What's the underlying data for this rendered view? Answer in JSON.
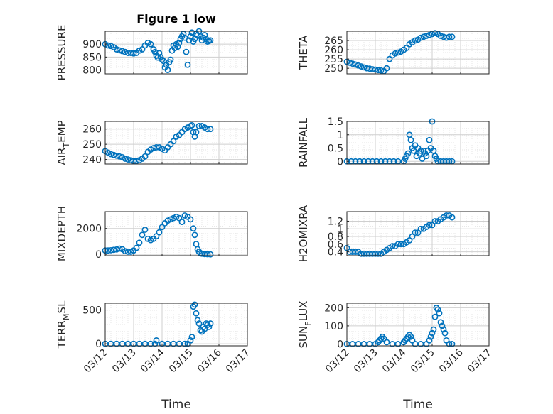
{
  "figure": {
    "title": "Figure 1 low"
  },
  "colors": {
    "marker": "#0072BD",
    "axis": "#262626",
    "grid": "#d9d9d9",
    "background": "#ffffff"
  },
  "chart_data": [
    {
      "id": "pressure",
      "type": "scatter",
      "ylabel": "PRESSURE",
      "ylabel_main": "PRESSURE",
      "ylabel_sub": "",
      "ylabel_tail": "",
      "title": "Figure 1 low",
      "xlim": [
        0,
        5
      ],
      "ylim": [
        785,
        950
      ],
      "yticks": [
        800,
        850,
        900
      ],
      "xticks": [],
      "grid": true,
      "marker": "open-circle",
      "x": [
        0.0,
        0.1,
        0.2,
        0.3,
        0.4,
        0.5,
        0.6,
        0.7,
        0.8,
        0.9,
        1.0,
        1.1,
        1.2,
        1.3,
        1.4,
        1.5,
        1.6,
        1.7,
        1.75,
        1.8,
        1.85,
        1.9,
        1.95,
        2.0,
        2.05,
        2.1,
        2.15,
        2.2,
        2.25,
        2.3,
        2.35,
        2.4,
        2.45,
        2.5,
        2.55,
        2.6,
        2.65,
        2.7,
        2.75,
        2.8,
        2.85,
        2.9,
        2.95,
        3.0,
        3.05,
        3.1,
        3.15,
        3.2,
        3.25,
        3.3,
        3.35,
        3.4,
        3.45,
        3.5,
        3.55,
        3.6,
        3.65,
        3.7
      ],
      "y": [
        900,
        895,
        893,
        888,
        880,
        876,
        873,
        870,
        866,
        866,
        864,
        866,
        875,
        880,
        895,
        905,
        900,
        880,
        870,
        855,
        848,
        865,
        850,
        840,
        835,
        810,
        820,
        800,
        830,
        840,
        875,
        895,
        885,
        900,
        890,
        905,
        920,
        930,
        940,
        925,
        870,
        820,
        915,
        930,
        945,
        910,
        920,
        940,
        935,
        950,
        930,
        915,
        925,
        935,
        920,
        910,
        912,
        915
      ]
    },
    {
      "id": "theta",
      "type": "scatter",
      "ylabel": "THETA",
      "ylabel_main": "THETA",
      "ylabel_sub": "",
      "ylabel_tail": "",
      "xlim": [
        0,
        5
      ],
      "ylim": [
        247,
        270
      ],
      "yticks": [
        250,
        255,
        260,
        265
      ],
      "xticks": [],
      "grid": true,
      "marker": "open-circle",
      "x": [
        0.0,
        0.1,
        0.2,
        0.3,
        0.4,
        0.5,
        0.6,
        0.7,
        0.8,
        0.9,
        1.0,
        1.1,
        1.2,
        1.3,
        1.4,
        1.5,
        1.6,
        1.7,
        1.8,
        1.9,
        2.0,
        2.1,
        2.2,
        2.3,
        2.4,
        2.5,
        2.6,
        2.7,
        2.8,
        2.9,
        3.0,
        3.1,
        3.2,
        3.3,
        3.4,
        3.5,
        3.6,
        3.7
      ],
      "y": [
        253.5,
        253,
        252.5,
        252,
        251.5,
        251,
        250.5,
        250,
        249.8,
        249.5,
        249.3,
        249,
        248.8,
        248.5,
        250,
        255,
        257,
        258,
        258.5,
        259,
        260,
        261,
        263,
        264,
        265,
        265.5,
        266.5,
        267,
        267.5,
        268,
        268.5,
        269,
        268.5,
        267.5,
        267,
        266.5,
        267,
        267
      ]
    },
    {
      "id": "air_temp",
      "type": "scatter",
      "ylabel": "AIR_TEMP",
      "ylabel_main": "AIR",
      "ylabel_sub": "T",
      "ylabel_tail": "EMP",
      "xlim": [
        0,
        5
      ],
      "ylim": [
        237,
        265
      ],
      "yticks": [
        240,
        250,
        260
      ],
      "xticks": [],
      "grid": true,
      "marker": "open-circle",
      "x": [
        0.0,
        0.1,
        0.2,
        0.3,
        0.4,
        0.5,
        0.6,
        0.7,
        0.8,
        0.9,
        1.0,
        1.1,
        1.2,
        1.3,
        1.4,
        1.5,
        1.6,
        1.7,
        1.8,
        1.9,
        2.0,
        2.1,
        2.2,
        2.3,
        2.4,
        2.5,
        2.6,
        2.7,
        2.8,
        2.9,
        3.0,
        3.05,
        3.1,
        3.15,
        3.2,
        3.3,
        3.4,
        3.5,
        3.6,
        3.7
      ],
      "y": [
        245.5,
        244.5,
        243.5,
        243,
        242.5,
        242,
        241.5,
        240.5,
        240,
        239.5,
        239,
        239,
        239.5,
        240.5,
        242,
        245,
        246.5,
        247.5,
        248,
        248,
        247,
        246,
        248,
        250,
        252,
        255,
        256,
        258,
        260,
        261,
        262,
        262.5,
        258,
        255,
        258,
        262,
        262,
        261,
        260,
        260
      ]
    },
    {
      "id": "rainfall",
      "type": "scatter",
      "ylabel": "RAINFALL",
      "ylabel_main": "RAINFALL",
      "ylabel_sub": "",
      "ylabel_tail": "",
      "xlim": [
        0,
        5
      ],
      "ylim": [
        -0.1,
        1.5
      ],
      "yticks": [
        0,
        0.5,
        1,
        1.5
      ],
      "yticklabels": [
        "0",
        "0.5",
        "1",
        "1.5"
      ],
      "xticks": [],
      "grid": true,
      "marker": "open-circle",
      "x": [
        0.0,
        0.15,
        0.3,
        0.45,
        0.6,
        0.75,
        0.9,
        1.05,
        1.2,
        1.35,
        1.5,
        1.65,
        1.8,
        2.0,
        2.05,
        2.1,
        2.15,
        2.2,
        2.25,
        2.3,
        2.35,
        2.4,
        2.45,
        2.5,
        2.55,
        2.6,
        2.65,
        2.7,
        2.75,
        2.8,
        2.85,
        2.9,
        2.95,
        3.0,
        3.05,
        3.1,
        3.15,
        3.2,
        3.3,
        3.4,
        3.5,
        3.6,
        3.7
      ],
      "y": [
        0,
        0,
        0,
        0,
        0,
        0,
        0,
        0,
        0,
        0,
        0,
        0,
        0,
        0,
        0.1,
        0.2,
        0.3,
        1.0,
        0.8,
        0.5,
        0.4,
        0.6,
        0.2,
        0.5,
        0.3,
        0.4,
        0.1,
        0.4,
        0.3,
        0.2,
        0.4,
        0.8,
        0.5,
        1.5,
        0.4,
        0.2,
        0.1,
        0,
        0,
        0,
        0,
        0,
        0
      ]
    },
    {
      "id": "mixdepth",
      "type": "scatter",
      "ylabel": "MIXDEPTH",
      "ylabel_main": "MIXDEPTH",
      "ylabel_sub": "",
      "ylabel_tail": "",
      "xlim": [
        0,
        5
      ],
      "ylim": [
        -100,
        3300
      ],
      "yticks": [
        0,
        2000
      ],
      "xticks": [],
      "grid": true,
      "marker": "open-circle",
      "x": [
        0.0,
        0.1,
        0.2,
        0.3,
        0.4,
        0.5,
        0.6,
        0.7,
        0.8,
        0.9,
        1.0,
        1.1,
        1.2,
        1.3,
        1.4,
        1.5,
        1.6,
        1.7,
        1.8,
        1.9,
        2.0,
        2.1,
        2.2,
        2.3,
        2.4,
        2.5,
        2.6,
        2.7,
        2.8,
        2.9,
        3.0,
        3.1,
        3.15,
        3.2,
        3.25,
        3.3,
        3.35,
        3.4,
        3.5,
        3.6,
        3.7
      ],
      "y": [
        300,
        300,
        320,
        350,
        380,
        450,
        400,
        250,
        200,
        200,
        300,
        500,
        900,
        1500,
        1900,
        1200,
        1100,
        1200,
        1400,
        1700,
        2100,
        2400,
        2600,
        2700,
        2800,
        2900,
        2800,
        2500,
        3000,
        2900,
        2700,
        2000,
        1500,
        800,
        400,
        200,
        100,
        50,
        20,
        10,
        0
      ]
    },
    {
      "id": "h2omixra",
      "type": "scatter",
      "ylabel": "H2OMIXRA",
      "ylabel_main": "H2OMIXRA",
      "ylabel_sub": "",
      "ylabel_tail": "",
      "xlim": [
        0,
        5
      ],
      "ylim": [
        0.3,
        1.45
      ],
      "yticks": [
        0.4,
        0.6,
        0.8,
        1,
        1.2
      ],
      "yticklabels": [
        "0.4",
        "0.6",
        "0.8",
        "1",
        "1.2"
      ],
      "xticks": [],
      "grid": true,
      "marker": "open-circle",
      "x": [
        0.0,
        0.1,
        0.2,
        0.3,
        0.4,
        0.5,
        0.6,
        0.7,
        0.8,
        0.9,
        1.0,
        1.1,
        1.2,
        1.3,
        1.4,
        1.5,
        1.6,
        1.7,
        1.8,
        1.9,
        2.0,
        2.1,
        2.2,
        2.3,
        2.4,
        2.5,
        2.6,
        2.7,
        2.8,
        2.9,
        3.0,
        3.1,
        3.2,
        3.3,
        3.4,
        3.5,
        3.6,
        3.7
      ],
      "y": [
        0.5,
        0.4,
        0.4,
        0.4,
        0.4,
        0.35,
        0.35,
        0.35,
        0.35,
        0.35,
        0.35,
        0.35,
        0.35,
        0.4,
        0.45,
        0.5,
        0.55,
        0.55,
        0.6,
        0.6,
        0.6,
        0.65,
        0.7,
        0.8,
        0.9,
        0.9,
        1.0,
        1.0,
        1.05,
        1.1,
        1.1,
        1.2,
        1.2,
        1.25,
        1.3,
        1.35,
        1.35,
        1.3
      ]
    },
    {
      "id": "terr_msl",
      "type": "scatter",
      "ylabel": "TERR_MSL",
      "ylabel_main": "TERR",
      "ylabel_sub": "M",
      "ylabel_tail": "SL",
      "xlim": [
        0,
        5
      ],
      "ylim": [
        -30,
        600
      ],
      "yticks": [
        0,
        500
      ],
      "xticks": [
        0,
        1,
        2,
        3,
        4,
        5
      ],
      "xticklabels": [
        "03/12",
        "03/13",
        "03/14",
        "03/15",
        "03/16",
        "03/17"
      ],
      "xlabel": "Time",
      "grid": true,
      "marker": "open-circle",
      "x": [
        0.0,
        0.2,
        0.4,
        0.6,
        0.8,
        1.0,
        1.2,
        1.4,
        1.6,
        1.75,
        1.8,
        2.0,
        2.2,
        2.4,
        2.6,
        2.8,
        2.9,
        3.0,
        3.05,
        3.1,
        3.15,
        3.2,
        3.25,
        3.3,
        3.35,
        3.4,
        3.45,
        3.5,
        3.55,
        3.6,
        3.65,
        3.7
      ],
      "y": [
        0,
        0,
        0,
        0,
        0,
        0,
        0,
        0,
        0,
        0,
        50,
        0,
        0,
        0,
        0,
        0,
        0,
        50,
        100,
        550,
        580,
        450,
        350,
        300,
        200,
        180,
        250,
        220,
        300,
        280,
        250,
        300
      ]
    },
    {
      "id": "sun_flux",
      "type": "scatter",
      "ylabel": "SUN_FLUX",
      "ylabel_main": "SUN",
      "ylabel_sub": "F",
      "ylabel_tail": "LUX",
      "xlim": [
        0,
        5
      ],
      "ylim": [
        -10,
        225
      ],
      "yticks": [
        0,
        100,
        200
      ],
      "xticks": [
        0,
        1,
        2,
        3,
        4,
        5
      ],
      "xticklabels": [
        "03/12",
        "03/13",
        "03/14",
        "03/15",
        "03/16",
        "03/17"
      ],
      "xlabel": "Time",
      "grid": true,
      "marker": "open-circle",
      "x": [
        0.0,
        0.2,
        0.4,
        0.6,
        0.8,
        1.0,
        1.1,
        1.15,
        1.2,
        1.25,
        1.3,
        1.4,
        1.6,
        1.8,
        2.0,
        2.05,
        2.1,
        2.15,
        2.2,
        2.25,
        2.3,
        2.4,
        2.6,
        2.8,
        2.9,
        2.95,
        3.0,
        3.05,
        3.1,
        3.15,
        3.2,
        3.25,
        3.3,
        3.35,
        3.4,
        3.45,
        3.5,
        3.6,
        3.7
      ],
      "y": [
        0,
        0,
        0,
        0,
        0,
        0,
        10,
        20,
        30,
        40,
        30,
        10,
        0,
        0,
        10,
        20,
        30,
        40,
        50,
        40,
        20,
        0,
        0,
        0,
        20,
        40,
        60,
        80,
        150,
        200,
        190,
        170,
        120,
        100,
        80,
        60,
        20,
        0,
        0
      ]
    }
  ]
}
